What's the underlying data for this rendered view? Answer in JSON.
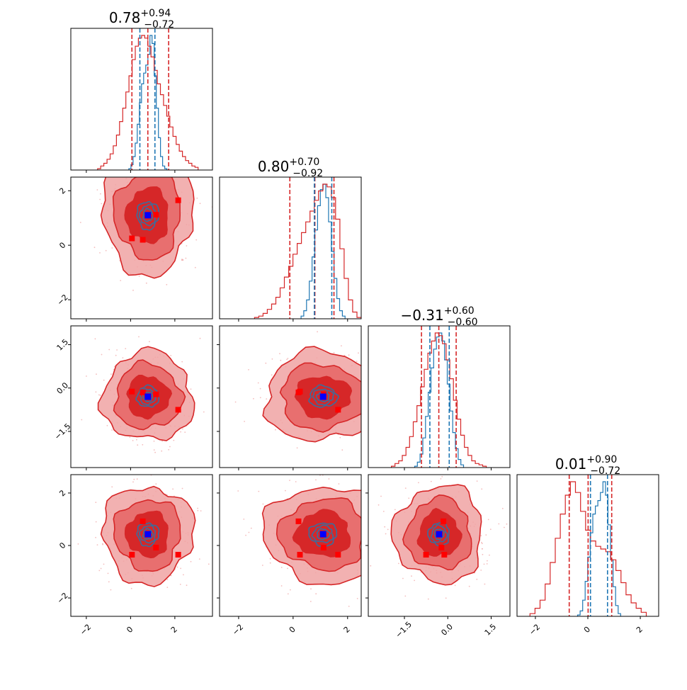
{
  "chart_data": {
    "type": "corner",
    "params": 4,
    "titles": [
      {
        "value": "0.78",
        "plus": "+0.94",
        "minus": "−0.72"
      },
      {
        "value": "0.80",
        "plus": "+0.70",
        "minus": "−0.92"
      },
      {
        "value": "−0.31",
        "plus": "+0.60",
        "minus": "−0.60"
      },
      {
        "value": "0.01",
        "plus": "+0.90",
        "minus": "−0.72"
      }
    ],
    "ranges": [
      [
        -2.7,
        3.7
      ],
      [
        -2.7,
        2.5
      ],
      [
        -2.75,
        2.15
      ],
      [
        -2.7,
        2.7
      ]
    ],
    "ticks": [
      {
        "values": [
          -2,
          0,
          2
        ],
        "labels": [
          "−2",
          "0",
          "2"
        ]
      },
      {
        "values": [
          -2,
          0,
          2
        ],
        "labels": [
          "−2",
          "0",
          "2"
        ]
      },
      {
        "values": [
          -1.5,
          0.0,
          1.5
        ],
        "labels": [
          "−1.5",
          "0.0",
          "1.5"
        ]
      },
      {
        "values": [
          -2,
          0,
          2
        ],
        "labels": [
          "−2",
          "0",
          "2"
        ]
      }
    ],
    "quantiles": {
      "red": [
        [
          0.06,
          0.78,
          1.72
        ],
        [
          -0.12,
          0.8,
          1.5
        ],
        [
          -0.91,
          -0.31,
          0.29
        ],
        [
          -0.71,
          0.01,
          0.91
        ]
      ],
      "blue": [
        [
          0.42,
          0.78,
          1.1
        ],
        [
          0.78,
          1.1,
          1.42
        ],
        [
          -0.62,
          -0.3,
          0.05
        ],
        [
          0.1,
          0.43,
          0.75
        ]
      ]
    },
    "blue_center": [
      0.78,
      1.1,
      -0.3,
      0.43
    ],
    "red_points": [
      [
        0.06,
        0.25,
        -0.12,
        -0.35
      ],
      [
        0.55,
        0.2,
        -0.15,
        0.92
      ],
      [
        1.15,
        1.12,
        -0.22,
        -0.08
      ],
      [
        2.15,
        1.65,
        -0.75,
        -0.35
      ]
    ],
    "hist_red": [
      [
        0.01,
        0.03,
        0.05,
        0.08,
        0.12,
        0.18,
        0.26,
        0.36,
        0.46,
        0.58,
        0.7,
        0.82,
        0.92,
        0.98,
        1,
        0.98,
        0.92,
        0.84,
        0.74,
        0.64,
        0.56,
        0.48,
        0.4,
        0.32,
        0.25,
        0.19,
        0.14,
        0.1,
        0.07,
        0.05,
        0.03,
        0.02
      ],
      [
        0.01,
        0.02,
        0.04,
        0.07,
        0.11,
        0.16,
        0.23,
        0.31,
        0.39,
        0.48,
        0.56,
        0.64,
        0.72,
        0.8,
        0.88,
        0.95,
        1,
        0.98,
        0.9,
        0.74,
        0.52,
        0.3,
        0.14,
        0.05,
        0.01
      ],
      [
        0.01,
        0.03,
        0.05,
        0.09,
        0.15,
        0.23,
        0.34,
        0.46,
        0.6,
        0.73,
        0.85,
        0.94,
        1,
        0.98,
        0.92,
        0.8,
        0.66,
        0.5,
        0.36,
        0.24,
        0.15,
        0.09,
        0.05,
        0.03,
        0.02,
        0.01
      ],
      [
        0.02,
        0.06,
        0.12,
        0.24,
        0.4,
        0.58,
        0.76,
        0.9,
        1,
        0.92,
        0.78,
        0.64,
        0.56,
        0.52,
        0.5,
        0.48,
        0.42,
        0.34,
        0.25,
        0.16,
        0.1,
        0.06,
        0.03
      ]
    ],
    "hist_blue": [
      [
        0.01,
        0.04,
        0.1,
        0.2,
        0.34,
        0.5,
        0.64,
        0.72,
        0.78,
        0.86,
        1,
        0.94,
        0.7,
        0.46,
        0.24,
        0.1,
        0.03,
        0.01
      ],
      [
        0.02,
        0.06,
        0.14,
        0.28,
        0.46,
        0.66,
        0.84,
        0.96,
        1,
        0.9,
        0.72,
        0.5,
        0.3,
        0.15,
        0.06,
        0.02
      ],
      [
        0.01,
        0.04,
        0.1,
        0.22,
        0.38,
        0.56,
        0.74,
        0.88,
        0.97,
        1,
        0.94,
        0.8,
        0.62,
        0.42,
        0.26,
        0.14,
        0.06,
        0.02
      ],
      [
        0.01,
        0.04,
        0.12,
        0.26,
        0.44,
        0.62,
        0.76,
        0.82,
        0.86,
        0.92,
        1,
        0.9,
        0.68,
        0.42,
        0.22,
        0.08,
        0.02
      ]
    ],
    "colors": {
      "red": "#d62728",
      "red_light": "#f0a3a3",
      "red_mid": "#e76b6b",
      "blue": "#1f77b4",
      "blue_dark": "#3a6e9e",
      "marker_blue": "#0000ff",
      "marker_red": "#ff0000"
    }
  }
}
